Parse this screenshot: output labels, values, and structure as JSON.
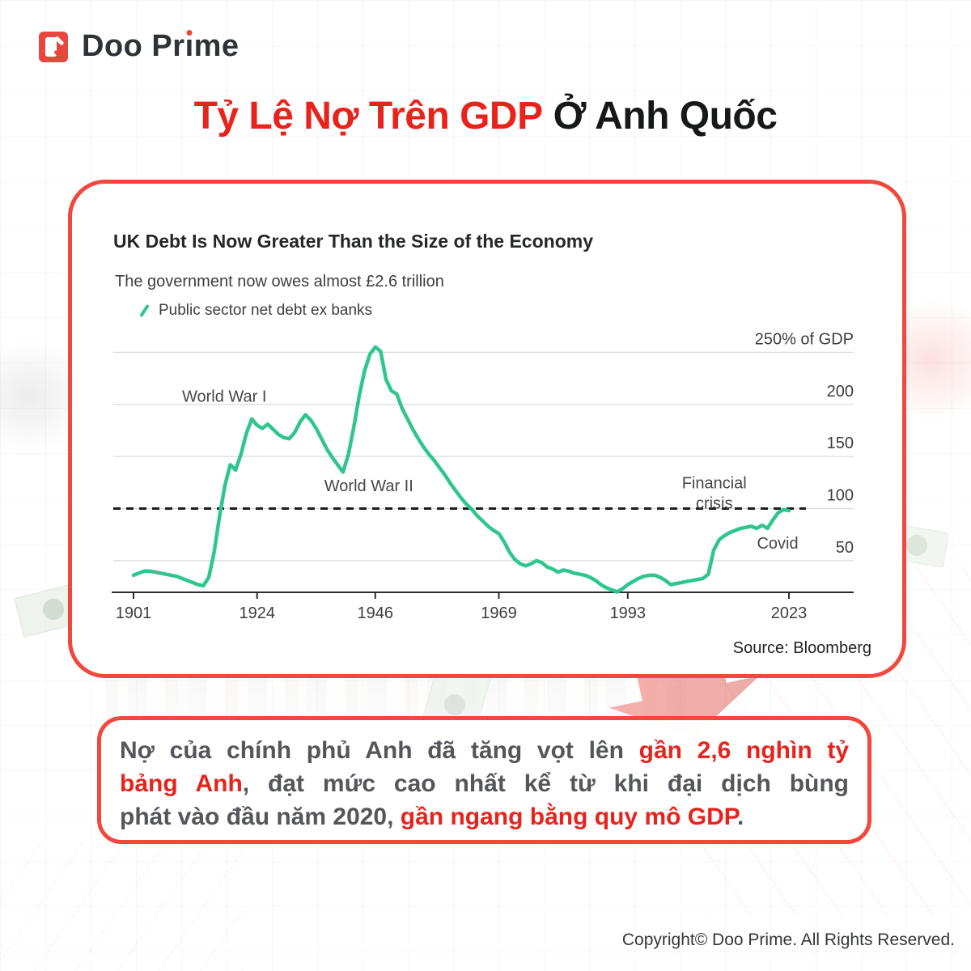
{
  "accent_red": "#f2473c",
  "text_red": "#e8231c",
  "logo": {
    "brand": "Doo Prime",
    "brand_pre": "Doo Pr",
    "brand_i": "ı",
    "brand_post": "me"
  },
  "title": {
    "highlight": "Tỷ Lệ Nợ Trên GDP",
    "rest": "Ở Anh Quốc"
  },
  "chart_data": {
    "type": "line",
    "title": "UK Debt Is Now Greater Than the Size of the Economy",
    "subtitle": "The government now owes almost £2.6 trillion",
    "legend": [
      {
        "label": "Public sector net debt ex banks",
        "color": "#2fc68e"
      }
    ],
    "unit": "% of GDP",
    "x_range": [
      1901,
      2023
    ],
    "ylim": [
      15,
      265
    ],
    "grid": "horizontal",
    "x_ticks": [
      1901,
      1924,
      1946,
      1969,
      1993,
      2023
    ],
    "y_ticks": [
      {
        "value": 250,
        "label": "250% of GDP"
      },
      {
        "value": 200,
        "label": "200"
      },
      {
        "value": 150,
        "label": "150"
      },
      {
        "value": 100,
        "label": "100"
      },
      {
        "value": 50,
        "label": "50"
      }
    ],
    "reference_line": {
      "value": 100,
      "style": "dashed"
    },
    "annotations": [
      {
        "lines": [
          "World War I"
        ],
        "year": 1917.9,
        "value": 208
      },
      {
        "lines": [
          "World War II"
        ],
        "year": 1944.8,
        "value": 122
      },
      {
        "lines": [
          "Financial",
          "crisis"
        ],
        "year": 2009.1,
        "value": 125
      },
      {
        "lines": [
          "Covid"
        ],
        "year": 2020.9,
        "value": 67
      }
    ],
    "series": [
      {
        "name": "Public sector net debt ex banks",
        "color": "#2fc68e",
        "points": [
          [
            1901,
            36
          ],
          [
            1902,
            38
          ],
          [
            1903,
            40
          ],
          [
            1904,
            40
          ],
          [
            1905,
            39
          ],
          [
            1906,
            38
          ],
          [
            1907,
            37
          ],
          [
            1908,
            36
          ],
          [
            1909,
            35
          ],
          [
            1910,
            33
          ],
          [
            1911,
            31
          ],
          [
            1912,
            29
          ],
          [
            1913,
            27
          ],
          [
            1914,
            26
          ],
          [
            1915,
            34
          ],
          [
            1916,
            58
          ],
          [
            1917,
            92
          ],
          [
            1918,
            122
          ],
          [
            1919,
            142
          ],
          [
            1920,
            137
          ],
          [
            1921,
            152
          ],
          [
            1922,
            172
          ],
          [
            1923,
            186
          ],
          [
            1924,
            180
          ],
          [
            1925,
            177
          ],
          [
            1926,
            181
          ],
          [
            1927,
            176
          ],
          [
            1928,
            171
          ],
          [
            1929,
            168
          ],
          [
            1930,
            167
          ],
          [
            1931,
            173
          ],
          [
            1932,
            183
          ],
          [
            1933,
            190
          ],
          [
            1934,
            185
          ],
          [
            1935,
            177
          ],
          [
            1936,
            167
          ],
          [
            1937,
            157
          ],
          [
            1938,
            149
          ],
          [
            1939,
            142
          ],
          [
            1940,
            135
          ],
          [
            1941,
            152
          ],
          [
            1942,
            178
          ],
          [
            1943,
            208
          ],
          [
            1944,
            232
          ],
          [
            1945,
            248
          ],
          [
            1946,
            255
          ],
          [
            1947,
            251
          ],
          [
            1948,
            224
          ],
          [
            1949,
            213
          ],
          [
            1950,
            210
          ],
          [
            1951,
            196
          ],
          [
            1952,
            186
          ],
          [
            1953,
            176
          ],
          [
            1954,
            167
          ],
          [
            1955,
            159
          ],
          [
            1956,
            152
          ],
          [
            1957,
            146
          ],
          [
            1958,
            139
          ],
          [
            1959,
            132
          ],
          [
            1960,
            124
          ],
          [
            1961,
            117
          ],
          [
            1962,
            110
          ],
          [
            1963,
            104
          ],
          [
            1964,
            99
          ],
          [
            1965,
            93
          ],
          [
            1966,
            88
          ],
          [
            1967,
            83
          ],
          [
            1968,
            79
          ],
          [
            1969,
            76
          ],
          [
            1970,
            68
          ],
          [
            1971,
            58
          ],
          [
            1972,
            51
          ],
          [
            1973,
            47
          ],
          [
            1974,
            45
          ],
          [
            1975,
            47
          ],
          [
            1976,
            50
          ],
          [
            1977,
            48
          ],
          [
            1978,
            44
          ],
          [
            1979,
            42
          ],
          [
            1980,
            39
          ],
          [
            1981,
            41
          ],
          [
            1982,
            40
          ],
          [
            1983,
            38
          ],
          [
            1984,
            37
          ],
          [
            1985,
            36
          ],
          [
            1986,
            34
          ],
          [
            1987,
            31
          ],
          [
            1988,
            27
          ],
          [
            1989,
            24
          ],
          [
            1990,
            22
          ],
          [
            1991,
            20
          ],
          [
            1992,
            23
          ],
          [
            1993,
            27
          ],
          [
            1994,
            30
          ],
          [
            1995,
            33
          ],
          [
            1996,
            35
          ],
          [
            1997,
            36
          ],
          [
            1998,
            36
          ],
          [
            1999,
            34
          ],
          [
            2000,
            31
          ],
          [
            2001,
            27
          ],
          [
            2002,
            28
          ],
          [
            2003,
            29
          ],
          [
            2004,
            30
          ],
          [
            2005,
            31
          ],
          [
            2006,
            32
          ],
          [
            2007,
            33
          ],
          [
            2008,
            37
          ],
          [
            2009,
            60
          ],
          [
            2010,
            70
          ],
          [
            2011,
            74
          ],
          [
            2012,
            77
          ],
          [
            2013,
            79
          ],
          [
            2014,
            81
          ],
          [
            2015,
            82
          ],
          [
            2016,
            83
          ],
          [
            2017,
            81
          ],
          [
            2018,
            84
          ],
          [
            2019,
            81
          ],
          [
            2020,
            89
          ],
          [
            2021,
            96
          ],
          [
            2022,
            99
          ],
          [
            2023,
            98
          ]
        ]
      }
    ],
    "source": "Source: Bloomberg"
  },
  "summary": {
    "lines": [
      {
        "justify": true,
        "segments": [
          {
            "t": "Nợ của chính phủ Anh đã tăng vọt lên ",
            "red": false
          },
          {
            "t": "gần 2,6 nghìn tỷ",
            "red": true
          }
        ]
      },
      {
        "justify": true,
        "segments": [
          {
            "t": "bảng Anh",
            "red": true
          },
          {
            "t": ", đạt mức cao nhất kể từ khi đại dịch bùng",
            "red": false
          }
        ]
      },
      {
        "justify": false,
        "segments": [
          {
            "t": "phát vào đầu năm 2020, ",
            "red": false
          },
          {
            "t": "gần ngang bằng quy mô GDP",
            "red": true
          },
          {
            "t": ".",
            "red": false
          }
        ]
      }
    ]
  },
  "footer": {
    "copyright": "Copyright© Doo Prime. All Rights Reserved."
  }
}
